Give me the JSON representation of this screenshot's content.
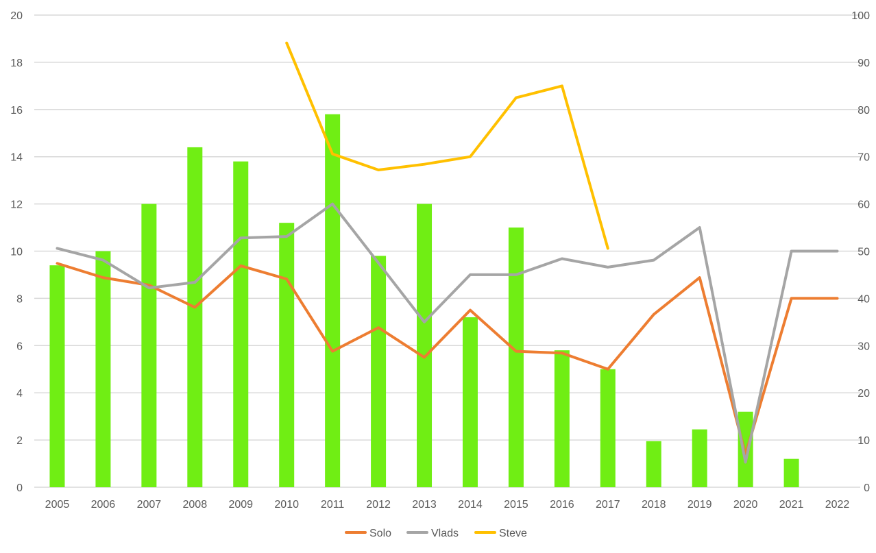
{
  "chart_data": {
    "type": "bar",
    "categories": [
      "2005",
      "2006",
      "2007",
      "2008",
      "2009",
      "2010",
      "2011",
      "2012",
      "2013",
      "2014",
      "2015",
      "2016",
      "2017",
      "2018",
      "2019",
      "2020",
      "2021",
      "2022"
    ],
    "bar_series": {
      "values": [
        9.4,
        10.0,
        12.0,
        14.4,
        13.8,
        11.2,
        15.8,
        9.8,
        12.0,
        7.2,
        11.0,
        5.8,
        5.0,
        1.95,
        2.45,
        3.2,
        1.2,
        null
      ],
      "color": "#70EE14",
      "axis": "left"
    },
    "line_series": [
      {
        "name": "Solo",
        "color": "#ED7D31",
        "axis": "right",
        "values": [
          47.4,
          44.4,
          42.8,
          38.1,
          46.9,
          44.1,
          28.8,
          33.8,
          27.5,
          37.5,
          28.8,
          28.4,
          25.0,
          36.6,
          44.4,
          6.9,
          40.0,
          40.0
        ]
      },
      {
        "name": "Vlads",
        "color": "#A5A5A5",
        "axis": "right",
        "values": [
          50.6,
          48.1,
          42.2,
          43.4,
          52.8,
          53.1,
          60.0,
          47.5,
          35.0,
          45.0,
          45.0,
          48.4,
          46.6,
          48.1,
          55.0,
          5.3,
          50.0,
          50.0
        ]
      },
      {
        "name": "Steve",
        "color": "#FFC000",
        "axis": "right",
        "values": [
          null,
          null,
          null,
          null,
          null,
          94.1,
          70.6,
          67.2,
          68.4,
          70.0,
          82.5,
          85.0,
          50.6,
          null,
          null,
          null,
          null,
          null
        ]
      }
    ],
    "left_axis": {
      "min": 0,
      "max": 20,
      "ticks": [
        "0",
        "2",
        "4",
        "6",
        "8",
        "10",
        "12",
        "14",
        "16",
        "18",
        "20"
      ]
    },
    "right_axis": {
      "min": 0,
      "max": 100,
      "ticks": [
        "0",
        "10",
        "20",
        "30",
        "40",
        "50",
        "60",
        "70",
        "80",
        "90",
        "100"
      ]
    },
    "grid": true,
    "legend": {
      "position": "bottom",
      "entries": [
        "Solo",
        "Vlads",
        "Steve"
      ]
    }
  }
}
